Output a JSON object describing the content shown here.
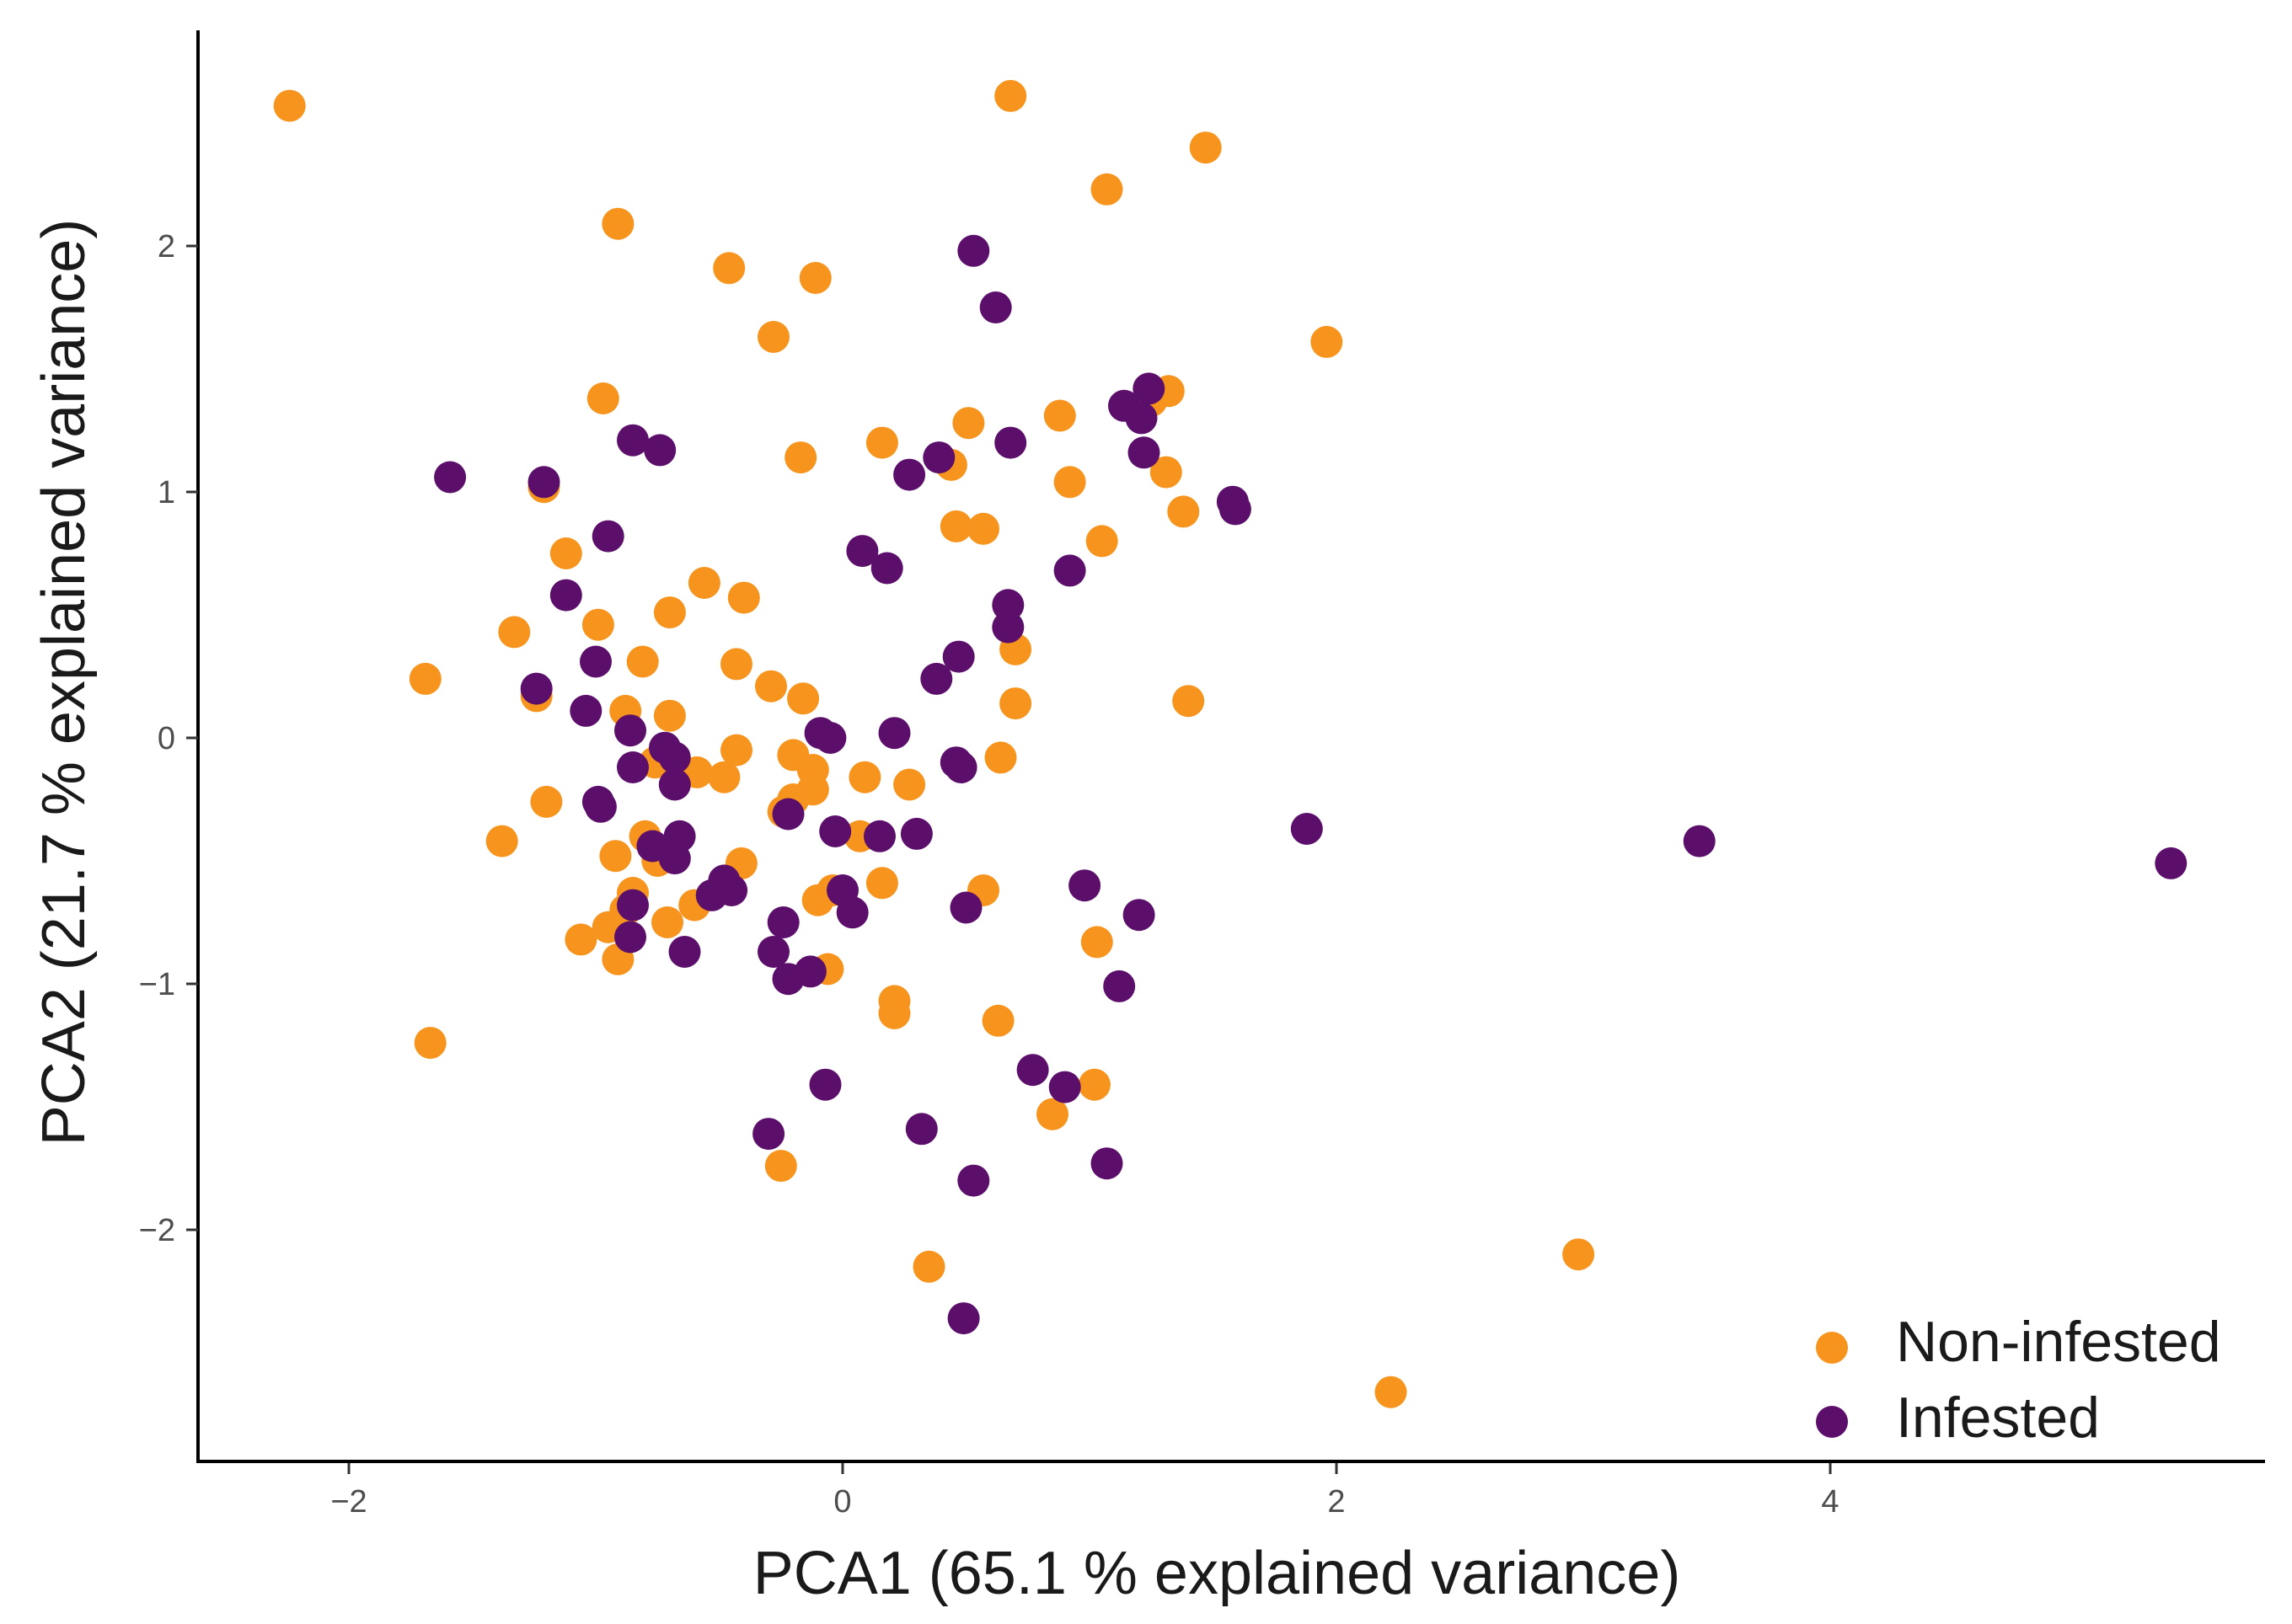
{
  "chart_data": {
    "type": "scatter",
    "title": "",
    "xlabel": "PCA1 (65.1 % explained variance)",
    "ylabel": "PCA2 (21.7 % explained variance)",
    "xlim": [
      -2.7,
      5.7
    ],
    "ylim": [
      -2.9,
      2.9
    ],
    "xticks": [
      -2,
      0,
      2,
      4
    ],
    "yticks": [
      -2,
      -1,
      0,
      1,
      2
    ],
    "xtick_labels": [
      "−2",
      "0",
      "2",
      "4"
    ],
    "ytick_labels": [
      "−2",
      "−1",
      "0",
      "1",
      "2"
    ],
    "grid": false,
    "legend_position": "bottom-right",
    "series": [
      {
        "name": "Non-infested",
        "color": "#F7941D",
        "points": [
          [
            -2.24,
            2.57
          ],
          [
            0.68,
            2.61
          ],
          [
            1.47,
            2.4
          ],
          [
            1.07,
            2.23
          ],
          [
            -0.91,
            2.09
          ],
          [
            -0.46,
            1.91
          ],
          [
            -0.11,
            1.87
          ],
          [
            -0.28,
            1.63
          ],
          [
            1.96,
            1.61
          ],
          [
            -0.97,
            1.38
          ],
          [
            1.32,
            1.41
          ],
          [
            1.25,
            1.37
          ],
          [
            0.88,
            1.31
          ],
          [
            0.51,
            1.28
          ],
          [
            0.16,
            1.2
          ],
          [
            -0.17,
            1.14
          ],
          [
            0.44,
            1.11
          ],
          [
            1.31,
            1.08
          ],
          [
            0.92,
            1.04
          ],
          [
            -1.21,
            1.02
          ],
          [
            1.38,
            0.92
          ],
          [
            0.46,
            0.86
          ],
          [
            0.57,
            0.85
          ],
          [
            1.05,
            0.8
          ],
          [
            -1.12,
            0.75
          ],
          [
            -0.56,
            0.63
          ],
          [
            -0.4,
            0.57
          ],
          [
            -0.7,
            0.51
          ],
          [
            -0.99,
            0.46
          ],
          [
            -1.33,
            0.43
          ],
          [
            0.7,
            0.36
          ],
          [
            -0.81,
            0.31
          ],
          [
            -0.43,
            0.3
          ],
          [
            -1.69,
            0.24
          ],
          [
            -0.29,
            0.21
          ],
          [
            -1.24,
            0.17
          ],
          [
            -0.16,
            0.16
          ],
          [
            1.4,
            0.15
          ],
          [
            0.7,
            0.14
          ],
          [
            -0.88,
            0.11
          ],
          [
            -0.7,
            0.09
          ],
          [
            -0.43,
            -0.05
          ],
          [
            -0.2,
            -0.07
          ],
          [
            0.64,
            -0.08
          ],
          [
            -0.76,
            -0.1
          ],
          [
            -0.12,
            -0.13
          ],
          [
            -0.59,
            -0.14
          ],
          [
            -0.48,
            -0.16
          ],
          [
            0.09,
            -0.16
          ],
          [
            0.27,
            -0.19
          ],
          [
            -0.12,
            -0.21
          ],
          [
            -0.2,
            -0.25
          ],
          [
            -1.2,
            -0.26
          ],
          [
            -0.24,
            -0.3
          ],
          [
            0.07,
            -0.4
          ],
          [
            -1.38,
            -0.42
          ],
          [
            -0.92,
            -0.48
          ],
          [
            -0.41,
            -0.51
          ],
          [
            -0.8,
            -0.4
          ],
          [
            -0.75,
            -0.5
          ],
          [
            0.16,
            -0.59
          ],
          [
            -0.04,
            -0.62
          ],
          [
            -0.85,
            -0.63
          ],
          [
            0.57,
            -0.62
          ],
          [
            -0.1,
            -0.66
          ],
          [
            -0.6,
            -0.68
          ],
          [
            -0.88,
            -0.7
          ],
          [
            -0.71,
            -0.75
          ],
          [
            -0.95,
            -0.77
          ],
          [
            -1.06,
            -0.82
          ],
          [
            1.03,
            -0.83
          ],
          [
            -0.91,
            -0.9
          ],
          [
            -0.06,
            -0.94
          ],
          [
            0.21,
            -1.07
          ],
          [
            0.21,
            -1.12
          ],
          [
            0.63,
            -1.15
          ],
          [
            -1.67,
            -1.24
          ],
          [
            1.02,
            -1.41
          ],
          [
            0.85,
            -1.53
          ],
          [
            -0.25,
            -1.74
          ],
          [
            0.35,
            -2.15
          ],
          [
            2.98,
            -2.1
          ],
          [
            2.22,
            -2.66
          ]
        ]
      },
      {
        "name": "Infested",
        "color": "#5B0F6B",
        "points": [
          [
            0.53,
            1.98
          ],
          [
            0.62,
            1.75
          ],
          [
            1.24,
            1.42
          ],
          [
            1.14,
            1.35
          ],
          [
            1.21,
            1.3
          ],
          [
            -0.85,
            1.21
          ],
          [
            0.68,
            1.2
          ],
          [
            -0.74,
            1.17
          ],
          [
            1.22,
            1.16
          ],
          [
            0.39,
            1.14
          ],
          [
            0.27,
            1.07
          ],
          [
            -1.59,
            1.06
          ],
          [
            -1.21,
            1.04
          ],
          [
            1.58,
            0.96
          ],
          [
            1.59,
            0.93
          ],
          [
            -0.95,
            0.82
          ],
          [
            0.08,
            0.76
          ],
          [
            0.18,
            0.69
          ],
          [
            0.92,
            0.68
          ],
          [
            -1.12,
            0.58
          ],
          [
            0.67,
            0.54
          ],
          [
            0.67,
            0.45
          ],
          [
            0.47,
            0.33
          ],
          [
            -1.0,
            0.31
          ],
          [
            0.38,
            0.24
          ],
          [
            -1.24,
            0.2
          ],
          [
            -1.04,
            0.11
          ],
          [
            -0.86,
            0.03
          ],
          [
            0.21,
            0.02
          ],
          [
            -0.09,
            0.02
          ],
          [
            -0.05,
            0.0
          ],
          [
            -0.72,
            -0.04
          ],
          [
            -0.68,
            -0.08
          ],
          [
            0.46,
            -0.1
          ],
          [
            0.48,
            -0.12
          ],
          [
            -0.85,
            -0.12
          ],
          [
            -0.68,
            -0.19
          ],
          [
            -0.99,
            -0.26
          ],
          [
            -0.98,
            -0.28
          ],
          [
            -0.22,
            -0.31
          ],
          [
            -0.03,
            -0.38
          ],
          [
            0.15,
            -0.4
          ],
          [
            0.3,
            -0.39
          ],
          [
            -0.66,
            -0.4
          ],
          [
            -0.77,
            -0.44
          ],
          [
            -0.68,
            -0.49
          ],
          [
            0.0,
            -0.62
          ],
          [
            -0.48,
            -0.58
          ],
          [
            -0.45,
            -0.62
          ],
          [
            -0.53,
            -0.64
          ],
          [
            0.98,
            -0.6
          ],
          [
            -0.85,
            -0.68
          ],
          [
            0.5,
            -0.69
          ],
          [
            0.04,
            -0.71
          ],
          [
            1.2,
            -0.72
          ],
          [
            -0.24,
            -0.75
          ],
          [
            -0.86,
            -0.81
          ],
          [
            -0.28,
            -0.87
          ],
          [
            -0.64,
            -0.87
          ],
          [
            -0.13,
            -0.95
          ],
          [
            -0.22,
            -0.98
          ],
          [
            1.12,
            -1.01
          ],
          [
            0.77,
            -1.35
          ],
          [
            0.9,
            -1.42
          ],
          [
            -0.07,
            -1.41
          ],
          [
            -0.3,
            -1.61
          ],
          [
            0.32,
            -1.59
          ],
          [
            1.07,
            -1.73
          ],
          [
            0.53,
            -1.8
          ],
          [
            0.49,
            -2.36
          ],
          [
            1.88,
            -0.37
          ],
          [
            3.47,
            -0.42
          ],
          [
            5.38,
            -0.51
          ]
        ]
      }
    ]
  }
}
